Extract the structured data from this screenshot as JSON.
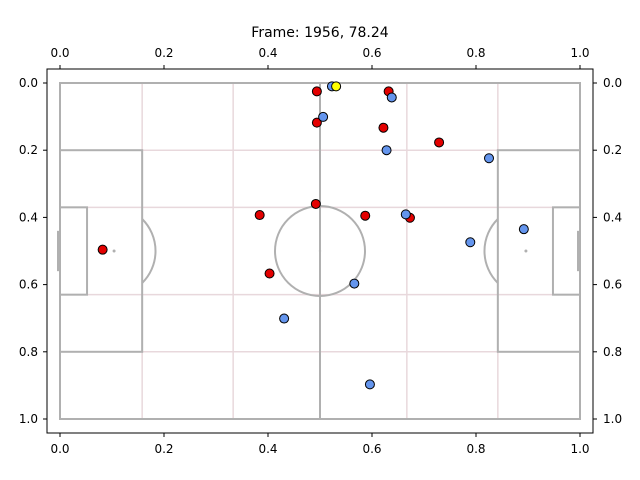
{
  "chart_data": {
    "type": "scatter",
    "title": "Frame: 1956, 78.24",
    "xlim": [
      0,
      1
    ],
    "ylim": [
      0,
      1
    ],
    "y_inverted": true,
    "grid": false,
    "x_ticks": [
      "0.0",
      "0.2",
      "0.4",
      "0.6",
      "0.8",
      "1.0"
    ],
    "y_ticks": [
      "0.0",
      "0.2",
      "0.4",
      "0.6",
      "0.8",
      "1.0"
    ],
    "colors": {
      "home": "#e30000",
      "away": "#6495ed",
      "ball": "#ffff00"
    },
    "series": [
      {
        "color_key": "home",
        "points": [
          {
            "x": 0.082,
            "y": 0.496
          },
          {
            "x": 0.384,
            "y": 0.393
          },
          {
            "x": 0.403,
            "y": 0.567
          },
          {
            "x": 0.494,
            "y": 0.025
          },
          {
            "x": 0.494,
            "y": 0.118
          },
          {
            "x": 0.492,
            "y": 0.36
          },
          {
            "x": 0.587,
            "y": 0.395
          },
          {
            "x": 0.622,
            "y": 0.133
          },
          {
            "x": 0.632,
            "y": 0.025
          },
          {
            "x": 0.673,
            "y": 0.401
          },
          {
            "x": 0.729,
            "y": 0.177
          }
        ]
      },
      {
        "color_key": "away",
        "points": [
          {
            "x": 0.431,
            "y": 0.701
          },
          {
            "x": 0.506,
            "y": 0.101
          },
          {
            "x": 0.523,
            "y": 0.01
          },
          {
            "x": 0.566,
            "y": 0.597
          },
          {
            "x": 0.596,
            "y": 0.897
          },
          {
            "x": 0.628,
            "y": 0.2
          },
          {
            "x": 0.638,
            "y": 0.043
          },
          {
            "x": 0.665,
            "y": 0.391
          },
          {
            "x": 0.789,
            "y": 0.474
          },
          {
            "x": 0.825,
            "y": 0.224
          },
          {
            "x": 0.892,
            "y": 0.435
          }
        ]
      },
      {
        "color_key": "ball",
        "points": [
          {
            "x": 0.531,
            "y": 0.01
          }
        ]
      }
    ]
  }
}
